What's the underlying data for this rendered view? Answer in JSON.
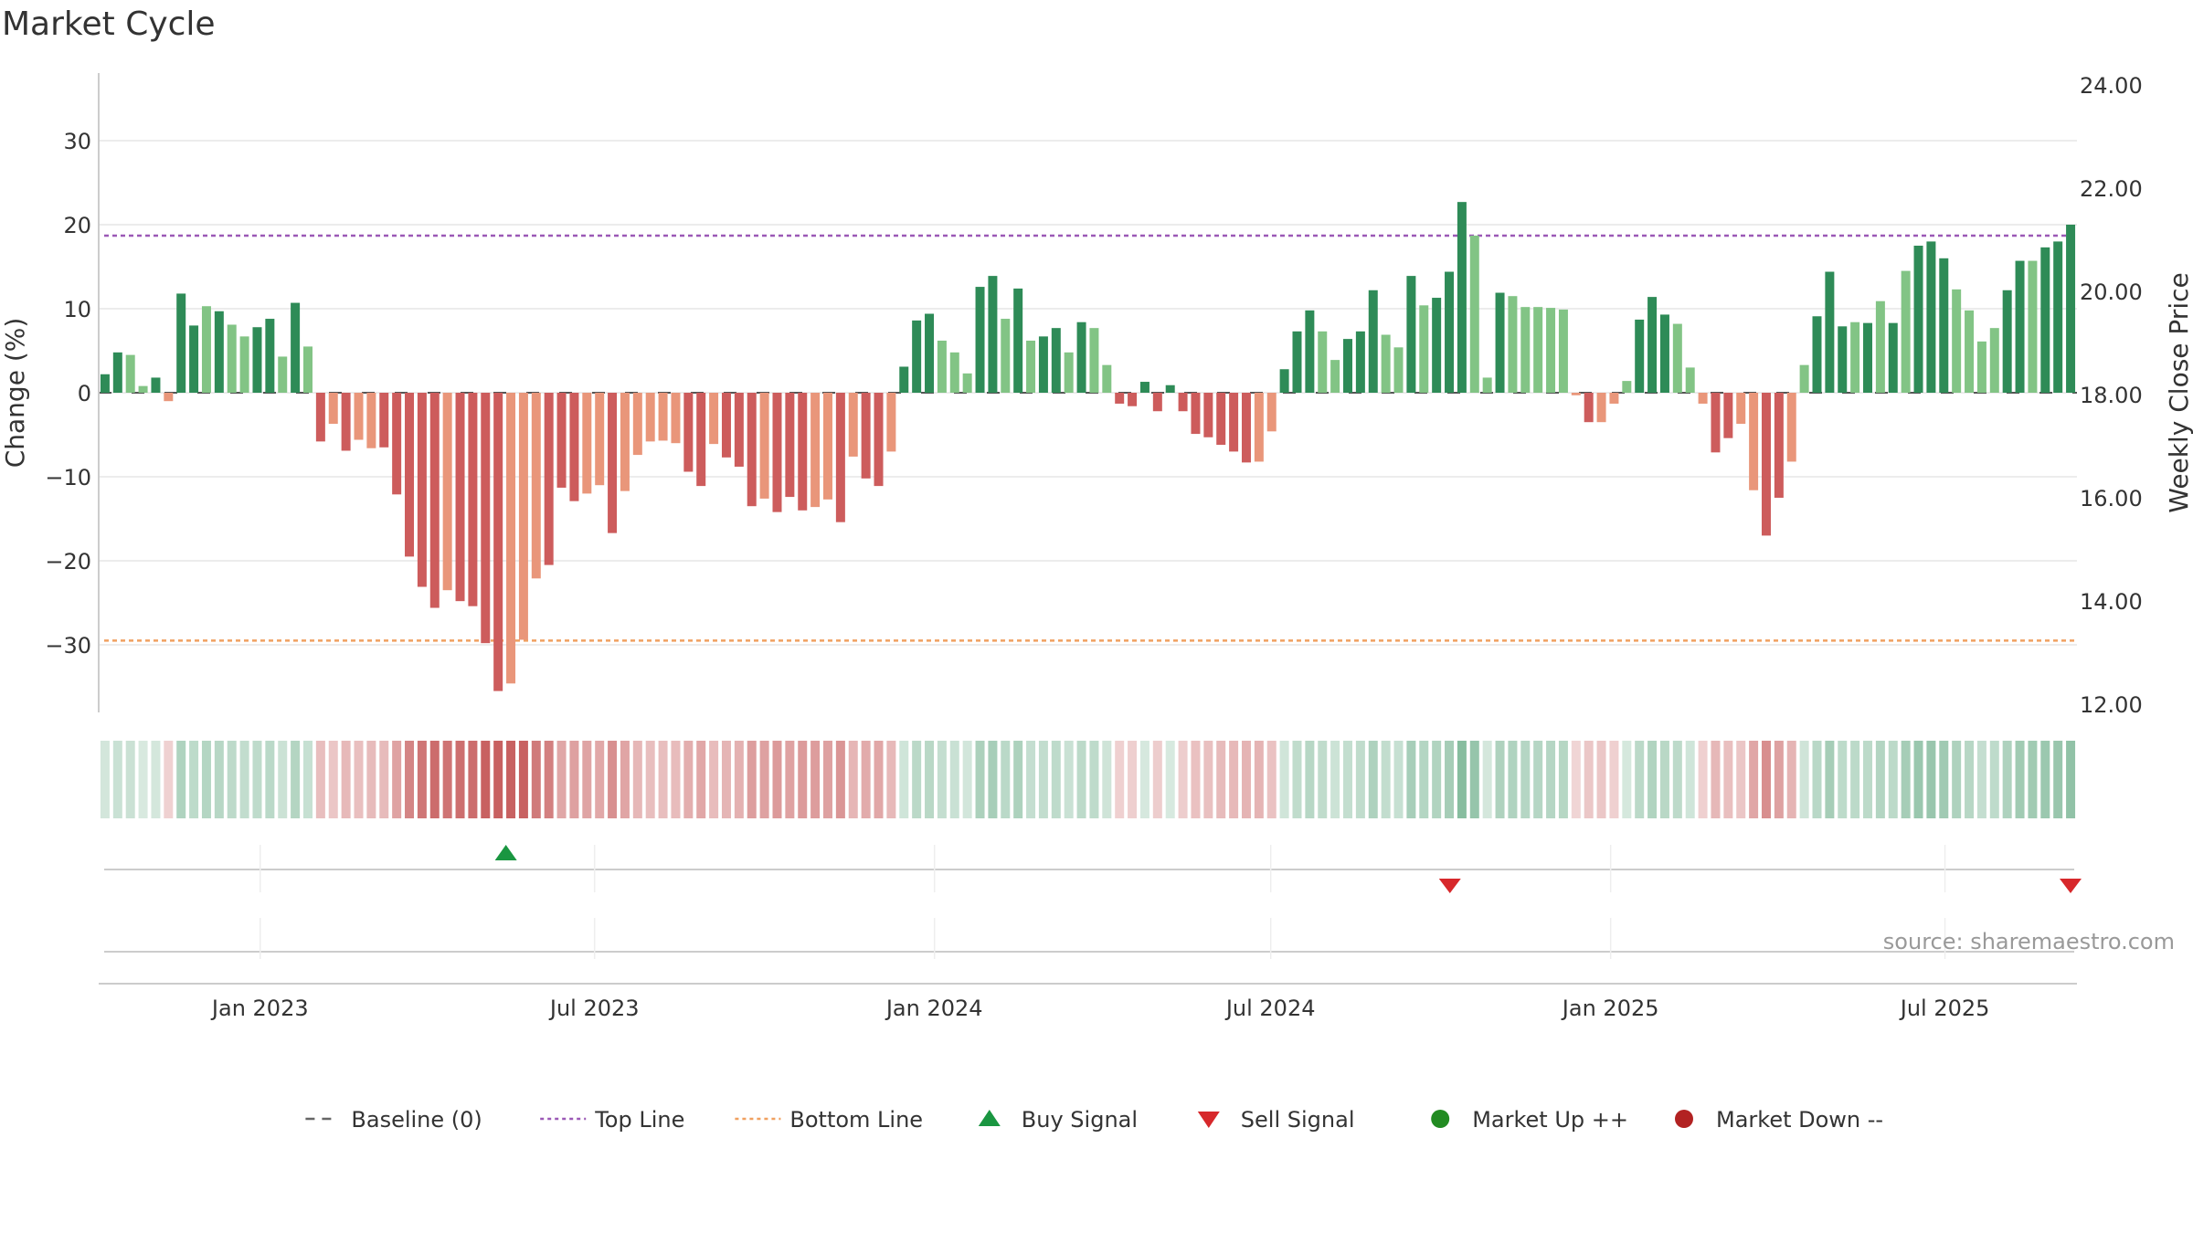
{
  "chart_data": {
    "type": "bar",
    "title": "Market Cycle",
    "ylabel": "Change (%)",
    "y2label": "Weekly Close Price",
    "ylim": [
      -38,
      38
    ],
    "y2lim": [
      12,
      24
    ],
    "y_ticks": [
      30,
      20,
      10,
      0,
      -10,
      -20,
      -30
    ],
    "y2_ticks": [
      "24.00",
      "22.00",
      "20.00",
      "18.00",
      "16.00",
      "14.00",
      "12.00"
    ],
    "x_ticks": [
      {
        "date": "2023-01-01",
        "label": "Jan 2023"
      },
      {
        "date": "2023-07-01",
        "label": "Jul 2023"
      },
      {
        "date": "2024-01-01",
        "label": "Jan 2024"
      },
      {
        "date": "2024-07-01",
        "label": "Jul 2024"
      },
      {
        "date": "2025-01-01",
        "label": "Jan 2025"
      },
      {
        "date": "2025-07-01",
        "label": "Jul 2025"
      }
    ],
    "first_week": "2022-10-09",
    "last_week": "2025-09-07",
    "top_line": 18.7,
    "bottom_line": -29.5,
    "baseline": 0,
    "values": [
      2.2,
      4.8,
      4.5,
      0.8,
      1.8,
      -1.0,
      11.8,
      8.0,
      10.3,
      9.7,
      8.1,
      6.7,
      7.8,
      8.8,
      4.3,
      10.7,
      5.5,
      -5.8,
      -3.7,
      -6.9,
      -5.6,
      -6.6,
      -6.5,
      -12.1,
      -19.5,
      -23.1,
      -25.6,
      -23.5,
      -24.8,
      -25.4,
      -29.8,
      -35.5,
      -34.6,
      -29.4,
      -22.1,
      -20.5,
      -11.3,
      -12.9,
      -12.0,
      -11.0,
      -16.7,
      -11.7,
      -7.4,
      -5.8,
      -5.7,
      -6.0,
      -9.4,
      -11.1,
      -6.1,
      -7.7,
      -8.8,
      -13.5,
      -12.6,
      -14.2,
      -12.4,
      -14.0,
      -13.6,
      -12.7,
      -15.4,
      -7.6,
      -10.2,
      -11.1,
      -7.0,
      3.1,
      8.6,
      9.4,
      6.2,
      4.8,
      2.3,
      12.6,
      13.9,
      8.8,
      12.4,
      6.2,
      6.7,
      7.7,
      4.8,
      8.4,
      7.7,
      3.3,
      -1.3,
      -1.6,
      1.3,
      -2.2,
      0.9,
      -2.2,
      -4.9,
      -5.3,
      -6.2,
      -7.0,
      -8.3,
      -8.2,
      -4.6,
      2.8,
      7.3,
      9.8,
      7.3,
      3.9,
      6.4,
      7.3,
      12.2,
      6.9,
      5.4,
      13.9,
      10.4,
      11.3,
      14.4,
      22.7,
      18.7,
      1.8,
      11.9,
      11.5,
      10.2,
      10.2,
      10.1,
      9.9,
      -0.3,
      -3.5,
      -3.5,
      -1.3,
      1.4,
      8.7,
      11.4,
      9.3,
      8.2,
      3.0,
      -1.3,
      -7.1,
      -5.4,
      -3.7,
      -11.6,
      -17.0,
      -12.5,
      -8.2,
      3.3,
      9.1,
      14.4,
      7.9,
      8.4,
      8.3,
      10.9,
      8.3,
      14.5,
      17.5,
      18.0,
      16.0,
      12.3,
      9.8,
      6.1,
      7.7,
      12.2,
      15.7,
      15.7,
      17.3,
      18.0,
      20.0
    ],
    "shade": [
      2,
      2,
      1,
      1,
      2,
      1,
      2,
      2,
      1,
      2,
      1,
      1,
      2,
      2,
      1,
      2,
      1,
      2,
      1,
      2,
      1,
      1,
      2,
      2,
      2,
      2,
      2,
      1,
      2,
      2,
      2,
      2,
      1,
      1,
      1,
      2,
      2,
      2,
      1,
      1,
      2,
      1,
      1,
      1,
      1,
      1,
      2,
      2,
      1,
      2,
      2,
      2,
      1,
      2,
      2,
      2,
      1,
      1,
      2,
      1,
      2,
      2,
      1,
      2,
      2,
      2,
      1,
      1,
      1,
      2,
      2,
      1,
      2,
      1,
      2,
      2,
      1,
      2,
      1,
      1,
      2,
      2,
      2,
      2,
      2,
      2,
      2,
      2,
      2,
      2,
      2,
      1,
      1,
      2,
      2,
      2,
      1,
      1,
      2,
      2,
      2,
      1,
      1,
      2,
      1,
      2,
      2,
      2,
      1,
      1,
      2,
      1,
      1,
      1,
      1,
      1,
      1,
      2,
      1,
      1,
      1,
      2,
      2,
      2,
      1,
      1,
      1,
      2,
      2,
      1,
      1,
      2,
      2,
      1,
      1,
      2,
      2,
      2,
      1,
      2,
      1,
      2,
      1,
      2,
      2,
      2,
      1,
      1,
      1,
      1,
      2,
      2,
      1,
      2,
      2,
      2
    ],
    "buy_signals": [
      "2023-05-14"
    ],
    "sell_signals": [
      "2024-10-06",
      "2025-09-07"
    ],
    "source": "source: sharemaestro.com",
    "legend": [
      {
        "label": "Baseline (0)",
        "kind": "dash",
        "color": "#666666"
      },
      {
        "label": "Top Line",
        "kind": "dot",
        "color": "#9b59b6"
      },
      {
        "label": "Bottom Line",
        "kind": "dot",
        "color": "#f0a060"
      },
      {
        "label": "Buy Signal",
        "kind": "tri-up",
        "color": "#1a9641"
      },
      {
        "label": "Sell Signal",
        "kind": "tri-down",
        "color": "#d7282b"
      },
      {
        "label": "Market Up ++",
        "kind": "circle",
        "color": "#228b22"
      },
      {
        "label": "Market Down --",
        "kind": "circle",
        "color": "#b22222"
      }
    ],
    "colors": {
      "up_dark": "#2e8b57",
      "up_light": "#82c485",
      "down_dark": "#cd5c5c",
      "down_light": "#e9967a",
      "top_line": "#9b59b6",
      "bottom_line": "#f0a060",
      "grid": "#e6e6e6"
    }
  }
}
